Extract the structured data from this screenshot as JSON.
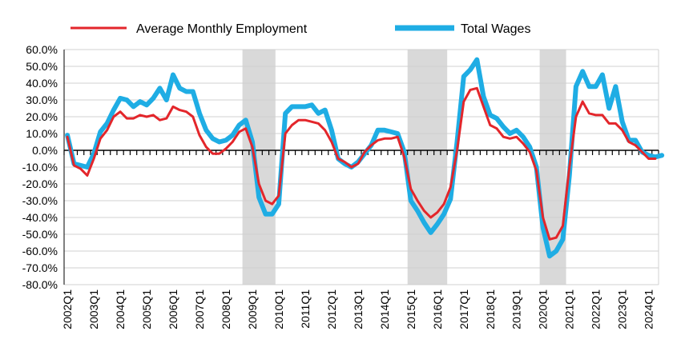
{
  "chart_data": {
    "type": "line",
    "title": "",
    "xlabel": "",
    "ylabel": "",
    "ylim": [
      -80,
      60
    ],
    "y_ticks": [
      60,
      50,
      40,
      30,
      20,
      10,
      0,
      -10,
      -20,
      -30,
      -40,
      -50,
      -60,
      -70,
      -80
    ],
    "y_tick_labels": [
      "60.0%",
      "50.0%",
      "40.0%",
      "30.0%",
      "20.0%",
      "10.0%",
      "0.0%",
      "-10.0%",
      "-20.0%",
      "-30.0%",
      "-40.0%",
      "-50.0%",
      "-60.0%",
      "-70.0%",
      "-80.0%"
    ],
    "x_start": "2002Q1",
    "x_tick_labels": [
      "2002Q1",
      "2003Q1",
      "2004Q1",
      "2005Q1",
      "2006Q1",
      "2007Q1",
      "2008Q1",
      "2009Q1",
      "2010Q1",
      "2011Q1",
      "2012Q1",
      "2013Q1",
      "2014Q1",
      "2015Q1",
      "2016Q1",
      "2017Q1",
      "2018Q1",
      "2019Q1",
      "2020Q1",
      "2021Q1",
      "2022Q1",
      "2023Q1",
      "2024Q1"
    ],
    "grid": true,
    "legend_position": "top",
    "shaded_periods": [
      [
        "2008Q4",
        "2009Q4"
      ],
      [
        "2015Q1",
        "2016Q2"
      ],
      [
        "2020Q1",
        "2020Q4"
      ]
    ],
    "shade_color": "#d9d9d9",
    "series": [
      {
        "name": "Average Monthly Employment",
        "color": "#e3262b",
        "values": [
          8,
          -9,
          -11,
          -15,
          -5,
          7,
          12,
          20,
          23,
          19,
          19,
          21,
          20,
          21,
          18,
          19,
          26,
          24,
          23,
          20,
          9,
          2,
          -2,
          -2,
          1,
          5,
          11,
          13,
          2,
          -20,
          -30,
          -32,
          -27,
          10,
          15,
          18,
          18,
          17,
          16,
          12,
          5,
          -5,
          -7,
          -10,
          -8,
          -1,
          3,
          6,
          7,
          7,
          8,
          -4,
          -23,
          -30,
          -36,
          -40,
          -37,
          -32,
          -22,
          0,
          29,
          36,
          37,
          26,
          15,
          13,
          8,
          7,
          8,
          4,
          -1,
          -12,
          -40,
          -53,
          -52,
          -45,
          -10,
          20,
          29,
          22,
          21,
          21,
          16,
          16,
          12,
          5,
          3,
          -1,
          -5,
          -5
        ]
      },
      {
        "name": "Total Wages",
        "color": "#1fade4",
        "values": [
          9,
          -8,
          -9,
          -10,
          -2,
          11,
          16,
          24,
          31,
          30,
          26,
          29,
          27,
          31,
          37,
          30,
          45,
          37,
          35,
          35,
          22,
          12,
          7,
          5,
          6,
          9,
          15,
          18,
          5,
          -28,
          -38,
          -38,
          -32,
          22,
          26,
          26,
          26,
          27,
          22,
          24,
          12,
          -5,
          -8,
          -10,
          -7,
          -2,
          3,
          12,
          12,
          11,
          10,
          -1,
          -30,
          -36,
          -43,
          -49,
          -44,
          -38,
          -29,
          5,
          44,
          48,
          54,
          32,
          21,
          19,
          14,
          10,
          12,
          8,
          2,
          -10,
          -46,
          -63,
          -60,
          -53,
          -15,
          38,
          47,
          38,
          38,
          45,
          25,
          38,
          17,
          6,
          6,
          -1,
          -3,
          -4,
          -3
        ]
      }
    ]
  }
}
